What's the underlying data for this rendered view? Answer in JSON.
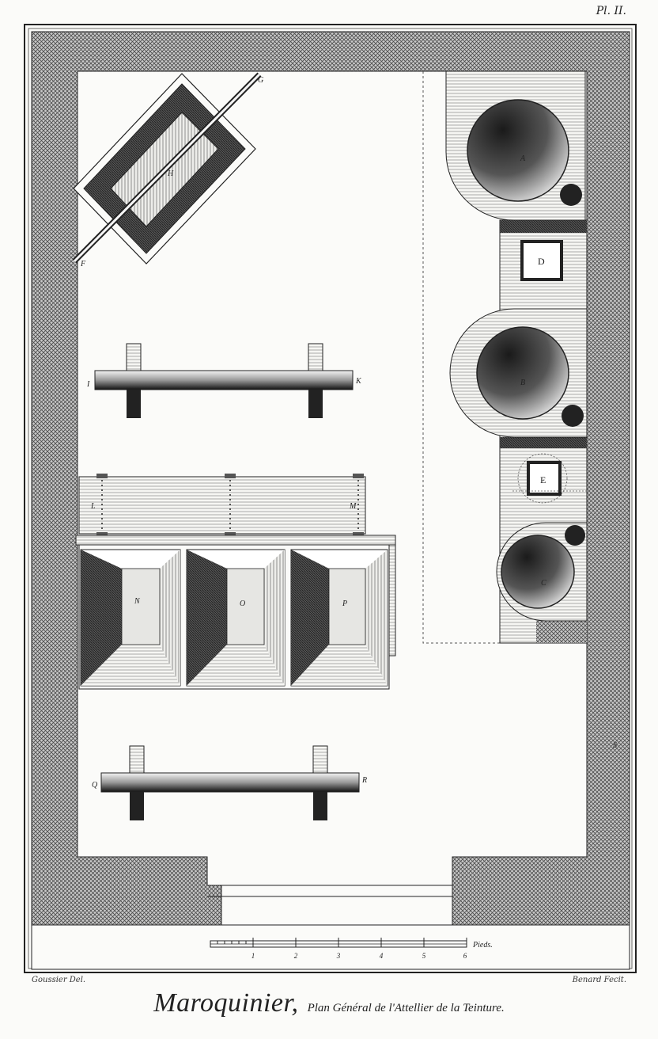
{
  "plate_number": "Pl. II.",
  "title": "Maroquinier,",
  "subtitle": "Plan Général de l'Attellier de la Teinture.",
  "credits": {
    "drawn_by": "Goussier Del.",
    "engraved_by": "Benard Fecit."
  },
  "labels": {
    "A": "A",
    "B": "B",
    "C": "C",
    "D": "D",
    "E": "E",
    "F": "F",
    "G": "G",
    "H": "H",
    "I": "I",
    "K": "K",
    "L": "L",
    "M": "M",
    "N": "N",
    "O": "O",
    "P": "P",
    "Q": "Q",
    "R": "R",
    "S": "S"
  },
  "scale": {
    "unit": "Pieds.",
    "marks": [
      "1",
      "2",
      "3",
      "4",
      "5",
      "6"
    ]
  },
  "colors": {
    "ink": "#222222",
    "paper": "#fbfbf9",
    "wall": "#8a8a8a"
  }
}
